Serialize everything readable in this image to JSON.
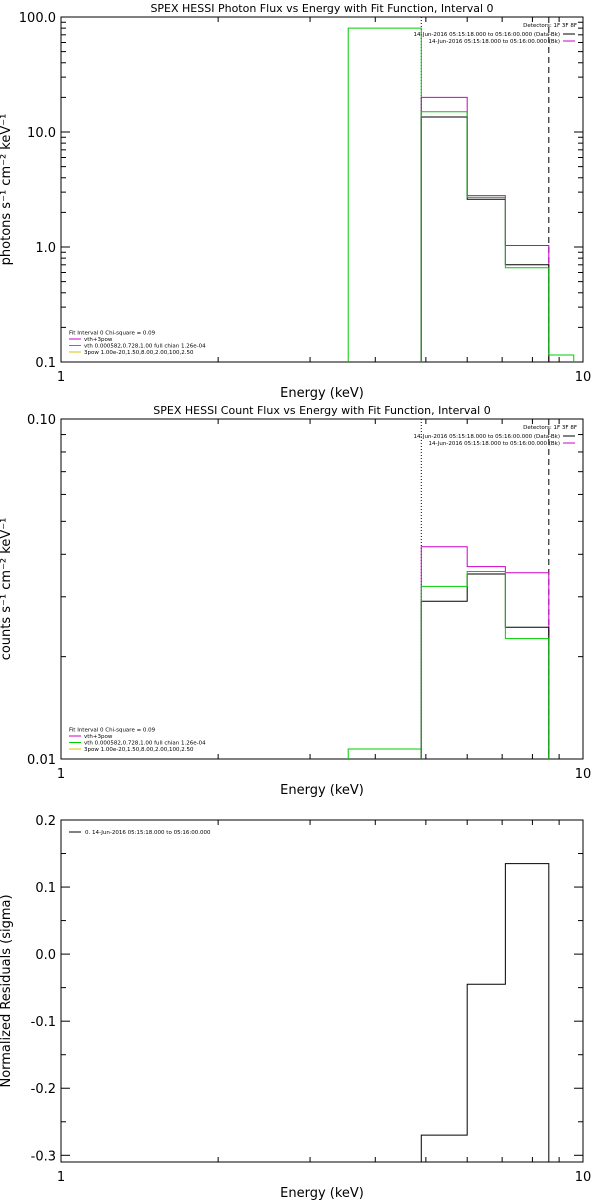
{
  "chart_data": [
    {
      "type": "line",
      "title": "SPEX HESSI Photon Flux vs Energy with Fit Function, Interval 0",
      "xlabel": "Energy (keV)",
      "ylabel": "photons s⁻¹ cm⁻² keV⁻¹",
      "xscale": "log",
      "yscale": "log",
      "xlim": [
        1,
        10
      ],
      "ylim": [
        0.1,
        100
      ],
      "x_tick_labels": [
        {
          "value": 1,
          "label": "1"
        },
        {
          "value": 10,
          "label": "10"
        }
      ],
      "y_tick_labels": [
        {
          "value": 0.1,
          "label": "0.1"
        },
        {
          "value": 1,
          "label": "1.0"
        },
        {
          "value": 10,
          "label": "10.0"
        },
        {
          "value": 100,
          "label": "100.0"
        }
      ],
      "legend_header": "Detectors: 1F 3F 8F",
      "legend_entries": [
        {
          "label": "14-Jun-2016 05:15:18.000 to 05:16:00.000 (Data-Bk)",
          "color": "#000000"
        },
        {
          "label": "14-Jun-2016 05:15:18.000 to 05:16:00.000 (Bk)",
          "color": "#cc00cc"
        }
      ],
      "fit_info": [
        {
          "label": "Fit Interval  0    Chi-square = 0.09",
          "color": "#000000"
        },
        {
          "label": "vth+3pow",
          "color": "#cc00cc"
        },
        {
          "label": "vth 0.000582,0.728,1.00  full chian 1.26e-04",
          "color": "#00cc00"
        },
        {
          "label": "3pow 1.00e-20,1.50,8.00,2.00,100,2.50",
          "color": "#e0c000"
        }
      ],
      "vlines": [
        {
          "x": 4.9,
          "style": "dotted"
        },
        {
          "x": 8.6,
          "style": "dashed"
        }
      ],
      "series": [
        {
          "color": "#00cc00",
          "edges": [
            3.55,
            4.9
          ],
          "values": [
            80
          ]
        },
        {
          "color": "#cc00cc",
          "edges": [
            4.9,
            6.0,
            7.1,
            8.6
          ],
          "values": [
            20,
            2.8,
            1.03
          ]
        },
        {
          "color": "#000000",
          "edges": [
            4.9,
            6.0,
            7.1,
            8.6
          ],
          "values": [
            13.5,
            2.6,
            0.7
          ]
        },
        {
          "color": "#00cc00",
          "edges": [
            4.9,
            6.0,
            7.1,
            8.6,
            9.6
          ],
          "values": [
            15,
            2.7,
            0.66,
            0.115
          ]
        }
      ]
    },
    {
      "type": "line",
      "title": "SPEX HESSI Count Flux vs Energy with Fit Function, Interval 0",
      "xlabel": "Energy (keV)",
      "ylabel": "counts s⁻¹ cm⁻² keV⁻¹",
      "xscale": "log",
      "yscale": "log",
      "xlim": [
        1,
        10
      ],
      "ylim": [
        0.01,
        0.1
      ],
      "x_tick_labels": [
        {
          "value": 1,
          "label": "1"
        },
        {
          "value": 10,
          "label": "10"
        }
      ],
      "y_tick_labels": [
        {
          "value": 0.01,
          "label": "0.01"
        },
        {
          "value": 0.1,
          "label": "0.10"
        }
      ],
      "legend_header": "Detectors: 1F 3F 8F",
      "legend_entries": [
        {
          "label": "14-Jun-2016 05:15:18.000 to 05:16:00.000 (Data-Bk)",
          "color": "#000000"
        },
        {
          "label": "14-Jun-2016 05:15:18.000 to 05:16:00.000 (Bk)",
          "color": "#cc00cc"
        }
      ],
      "fit_info": [
        {
          "label": "Fit Interval  0    Chi-square = 0.09",
          "color": "#000000"
        },
        {
          "label": "vth+3pow",
          "color": "#cc00cc"
        },
        {
          "label": "vth 0.000582,0.728,1.00  full chian 1.26e-04",
          "color": "#00cc00"
        },
        {
          "label": "3pow 1.00e-20,1.50,8.00,2.00,100,2.50",
          "color": "#e0c000"
        }
      ],
      "vlines": [
        {
          "x": 4.9,
          "style": "dotted"
        },
        {
          "x": 8.6,
          "style": "dashed"
        }
      ],
      "series": [
        {
          "color": "#00cc00",
          "edges": [
            3.55,
            4.9
          ],
          "values": [
            0.0107
          ]
        },
        {
          "color": "#cc00cc",
          "edges": [
            4.9,
            6.0,
            7.1,
            8.6
          ],
          "values": [
            0.0421,
            0.0368,
            0.0353
          ]
        },
        {
          "color": "#000000",
          "edges": [
            4.9,
            6.0,
            7.1,
            8.6
          ],
          "values": [
            0.0291,
            0.035,
            0.0244
          ]
        },
        {
          "color": "#00cc00",
          "edges": [
            4.9,
            6.0,
            7.1,
            8.6
          ],
          "values": [
            0.0322,
            0.0356,
            0.0226
          ]
        }
      ]
    },
    {
      "type": "line",
      "title": "",
      "xlabel": "Energy (keV)",
      "ylabel": "Normalized Residuals (sigma)",
      "xscale": "log",
      "yscale": "linear",
      "xlim": [
        1,
        10
      ],
      "ylim": [
        -0.31,
        0.2
      ],
      "x_tick_labels": [
        {
          "value": 1,
          "label": "1"
        },
        {
          "value": 10,
          "label": "10"
        }
      ],
      "y_tick_labels": [
        {
          "value": -0.3,
          "label": "-0.3"
        },
        {
          "value": -0.2,
          "label": "-0.2"
        },
        {
          "value": -0.1,
          "label": "-0.1"
        },
        {
          "value": 0.0,
          "label": "0.0"
        },
        {
          "value": 0.1,
          "label": "0.1"
        },
        {
          "value": 0.2,
          "label": "0.2"
        }
      ],
      "legend_header": "",
      "legend_entries": [
        {
          "label": "0. 14-Jun-2016 05:15:18.000 to 05:16:00.000",
          "color": "#000000"
        }
      ],
      "fit_info": [],
      "vlines": [],
      "series": [
        {
          "color": "#000000",
          "edges": [
            4.9,
            6.0,
            7.1,
            8.6
          ],
          "values": [
            -0.27,
            -0.045,
            0.135
          ],
          "close_to_bottom": true
        }
      ]
    }
  ]
}
